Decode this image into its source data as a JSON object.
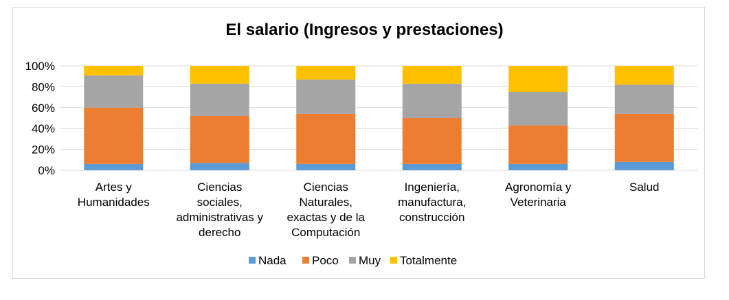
{
  "chart_data": {
    "type": "bar",
    "stacked": true,
    "percent_stacked": true,
    "title": "El salario (Ingresos y prestaciones)",
    "xlabel": "",
    "ylabel": "",
    "ylim": [
      0,
      100
    ],
    "yticks": [
      "0%",
      "20%",
      "40%",
      "60%",
      "80%",
      "100%"
    ],
    "grid": true,
    "legend_position": "bottom",
    "categories": [
      [
        "Artes y",
        "Humanidades"
      ],
      [
        "Ciencias",
        "sociales,",
        "administrativas y",
        "derecho"
      ],
      [
        "Ciencias",
        "Naturales,",
        "exactas y de la",
        "Computación"
      ],
      [
        "Ingeniería,",
        "manufactura,",
        "construcción"
      ],
      [
        "Agronomía y",
        "Veterinaria"
      ],
      [
        "Salud"
      ]
    ],
    "series": [
      {
        "name": "Nada",
        "color": "#5b9bd5",
        "values": [
          6,
          7,
          6,
          6,
          6,
          8
        ]
      },
      {
        "name": "Poco",
        "color": "#ed7d31",
        "values": [
          54,
          45,
          48,
          44,
          37,
          46
        ]
      },
      {
        "name": "Muy",
        "color": "#a5a5a5",
        "values": [
          31,
          31,
          33,
          33,
          32,
          28
        ]
      },
      {
        "name": "Totalmente",
        "color": "#ffc000",
        "values": [
          9,
          17,
          13,
          17,
          25,
          18
        ]
      }
    ]
  }
}
